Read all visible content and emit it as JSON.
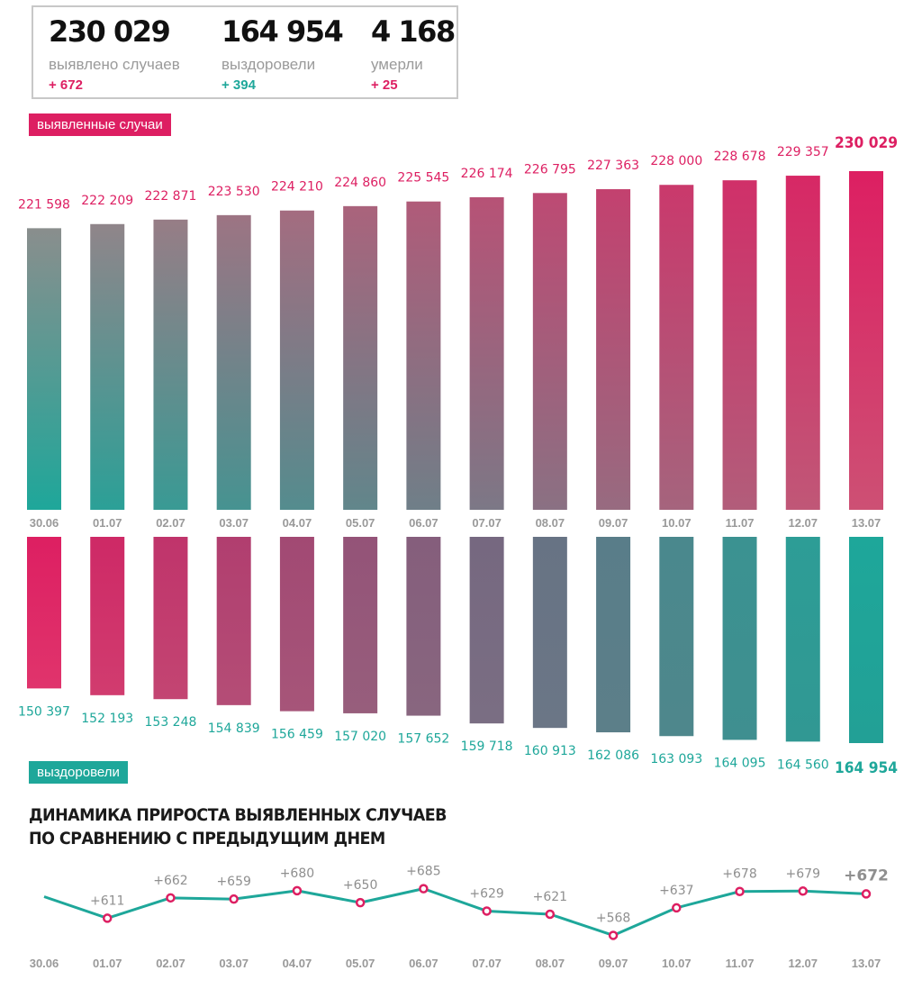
{
  "summary": {
    "cases": {
      "value": "230 029",
      "label": "выявлено случаев",
      "delta": "+ 672"
    },
    "recovered": {
      "value": "164 954",
      "label": "выздоровели",
      "delta": "+ 394"
    },
    "deaths": {
      "value": "4 168",
      "label": "умерли",
      "delta": "+ 25"
    }
  },
  "labels": {
    "cases_tag": "выявленные случаи",
    "recovered_tag": "выздоровели",
    "growth_title_line1": "ДИНАМИКА ПРИРОСТА ВЫЯВЛЕННЫХ СЛУЧАЕВ",
    "growth_title_line2": "ПО СРАВНЕНИЮ С ПРЕДЫДУЩИМ ДНЕМ"
  },
  "colors": {
    "teal": "#1ea79a",
    "pink": "#dd1f62",
    "label_gray": "#999999",
    "frame_gray": "#c8c8c8"
  },
  "chart_data": [
    {
      "type": "bar",
      "title": "выявленные случаи",
      "categories": [
        "30.06",
        "01.07",
        "02.07",
        "03.07",
        "04.07",
        "05.07",
        "06.07",
        "07.07",
        "08.07",
        "09.07",
        "10.07",
        "11.07",
        "12.07",
        "13.07"
      ],
      "values": [
        221598,
        222209,
        222871,
        223530,
        224210,
        224860,
        225545,
        226174,
        226795,
        227363,
        228000,
        228678,
        229357,
        230029
      ],
      "value_labels": [
        "221 598",
        "222 209",
        "222 871",
        "223 530",
        "224 210",
        "224 860",
        "225 545",
        "226 174",
        "226 795",
        "227 363",
        "228 000",
        "228 678",
        "229 357",
        "230 029"
      ]
    },
    {
      "type": "bar",
      "title": "выздоровели",
      "orientation": "downward",
      "categories": [
        "30.06",
        "01.07",
        "02.07",
        "03.07",
        "04.07",
        "05.07",
        "06.07",
        "07.07",
        "08.07",
        "09.07",
        "10.07",
        "11.07",
        "12.07",
        "13.07"
      ],
      "values": [
        150397,
        152193,
        153248,
        154839,
        156459,
        157020,
        157652,
        159718,
        160913,
        162086,
        163093,
        164095,
        164560,
        164954
      ],
      "value_labels": [
        "150 397",
        "152 193",
        "153 248",
        "154 839",
        "156 459",
        "157 020",
        "157 652",
        "159 718",
        "160 913",
        "162 086",
        "163 093",
        "164 095",
        "164 560",
        "164 954"
      ]
    },
    {
      "type": "line",
      "title": "ДИНАМИКА ПРИРОСТА ВЫЯВЛЕННЫХ СЛУЧАЕВ ПО СРАВНЕНИЮ С ПРЕДЫДУЩИМ ДНЕМ",
      "x": [
        "30.06",
        "01.07",
        "02.07",
        "03.07",
        "04.07",
        "05.07",
        "06.07",
        "07.07",
        "08.07",
        "09.07",
        "10.07",
        "11.07",
        "12.07",
        "13.07"
      ],
      "start_value": 665,
      "values": [
        null,
        611,
        662,
        659,
        680,
        650,
        685,
        629,
        621,
        568,
        637,
        678,
        679,
        672
      ],
      "point_labels": [
        "",
        "+611",
        "+662",
        "+659",
        "+680",
        "+650",
        "+685",
        "+629",
        "+621",
        "+568",
        "+637",
        "+678",
        "+679",
        "+672"
      ]
    }
  ]
}
